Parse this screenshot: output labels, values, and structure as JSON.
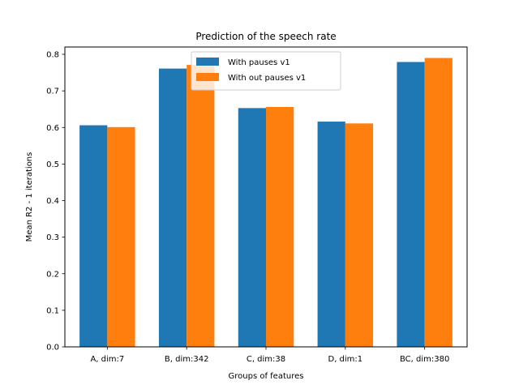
{
  "chart_data": {
    "type": "bar",
    "title": "Prediction of the speech rate",
    "xlabel": "Groups of features",
    "ylabel": "Mean R2 - 1 iterations",
    "categories": [
      "A, dim:7",
      "B, dim:342",
      "C, dim:38",
      "D, dim:1",
      "BC, dim:380"
    ],
    "series": [
      {
        "name": "With pauses v1",
        "color": "#1f77b4",
        "values": [
          0.606,
          0.761,
          0.653,
          0.616,
          0.779
        ]
      },
      {
        "name": "With out pauses v1",
        "color": "#ff7f0e",
        "values": [
          0.601,
          0.771,
          0.656,
          0.611,
          0.79
        ]
      }
    ],
    "ylim": [
      0,
      0.82
    ],
    "yticks": [
      "0.0",
      "0.1",
      "0.2",
      "0.3",
      "0.4",
      "0.5",
      "0.6",
      "0.7",
      "0.8"
    ],
    "grid": false,
    "legend_position": "upper-center"
  }
}
